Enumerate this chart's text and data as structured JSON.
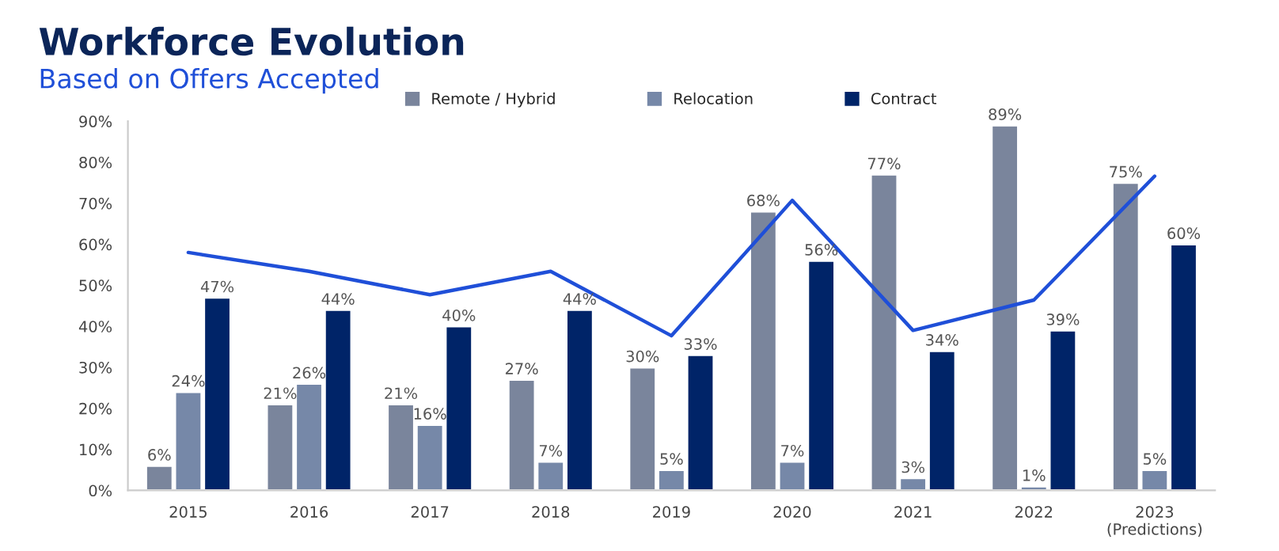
{
  "chart_data": {
    "type": "bar",
    "title": "Workforce Evolution",
    "subtitle": "Based on Offers Accepted",
    "categories": [
      "2015",
      "2016",
      "2017",
      "2018",
      "2019",
      "2020",
      "2021",
      "2022",
      "2023\n(Predictions)"
    ],
    "series": [
      {
        "name": "Remote / Hybrid",
        "color": "#7a859c",
        "values": [
          6,
          21,
          21,
          27,
          30,
          68,
          77,
          89,
          75
        ],
        "value_labels": [
          "6%",
          "21%",
          "21%",
          "27%",
          "30%",
          "68%",
          "77%",
          "89%",
          "75%"
        ]
      },
      {
        "name": "Relocation",
        "color": "#7688a8",
        "values": [
          24,
          26,
          16,
          7,
          5,
          7,
          3,
          1,
          5
        ],
        "value_labels": [
          "24%",
          "26%",
          "16%",
          "7%",
          "5%",
          "7%",
          "3%",
          "1%",
          "5%"
        ]
      },
      {
        "name": "Contract",
        "color": "#002468",
        "values": [
          47,
          44,
          40,
          44,
          33,
          56,
          34,
          39,
          60
        ],
        "value_labels": [
          "47%",
          "44%",
          "40%",
          "44%",
          "33%",
          "56%",
          "34%",
          "39%",
          "60%"
        ]
      },
      {
        "type": "line",
        "color": "#1f4fd8",
        "values": [
          58,
          53.4,
          47.7,
          53.4,
          37.7,
          70.7,
          39,
          46.4,
          76.6
        ]
      }
    ],
    "ylim": [
      0,
      90
    ],
    "yticks": [
      {
        "value": 0,
        "label": "0%"
      },
      {
        "value": 10,
        "label": "10%"
      },
      {
        "value": 20,
        "label": "20%"
      },
      {
        "value": 30,
        "label": "30%"
      },
      {
        "value": 40,
        "label": "40%"
      },
      {
        "value": 50,
        "label": "50%"
      },
      {
        "value": 60,
        "label": "60%"
      },
      {
        "value": 70,
        "label": "70%"
      },
      {
        "value": 80,
        "label": "80%"
      },
      {
        "value": 90,
        "label": "90%"
      }
    ],
    "grid": false,
    "legend": "top"
  }
}
